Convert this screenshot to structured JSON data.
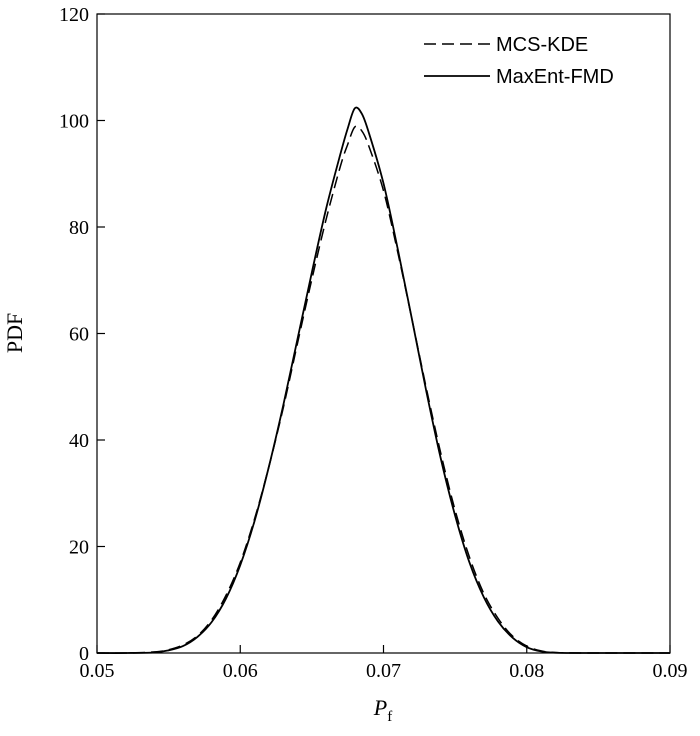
{
  "chart_data": {
    "type": "line",
    "xlabel": "P",
    "xlabel_subscript": "f",
    "ylabel": "PDF",
    "xlim": [
      0.05,
      0.09
    ],
    "ylim": [
      0,
      120
    ],
    "x_ticks": [
      0.05,
      0.06,
      0.07,
      0.08,
      0.09
    ],
    "x_tick_labels": [
      "0.05",
      "0.06",
      "0.07",
      "0.08",
      "0.09"
    ],
    "y_ticks": [
      0,
      20,
      40,
      60,
      80,
      100,
      120
    ],
    "y_tick_labels": [
      "0",
      "20",
      "40",
      "60",
      "80",
      "100",
      "120"
    ],
    "grid": false,
    "legend_position": "top-right",
    "series": [
      {
        "name": "MCS-KDE",
        "style": "dashed",
        "color": "#000000",
        "points": [
          [
            0.05,
            0
          ],
          [
            0.052,
            0
          ],
          [
            0.054,
            0.2
          ],
          [
            0.055,
            0.6
          ],
          [
            0.056,
            1.5
          ],
          [
            0.057,
            3.2
          ],
          [
            0.058,
            6.2
          ],
          [
            0.059,
            10.8
          ],
          [
            0.06,
            17.0
          ],
          [
            0.061,
            25.2
          ],
          [
            0.062,
            35.0
          ],
          [
            0.063,
            46.0
          ],
          [
            0.064,
            58.2
          ],
          [
            0.065,
            70.2
          ],
          [
            0.066,
            81.5
          ],
          [
            0.067,
            91.5
          ],
          [
            0.0675,
            95.5
          ],
          [
            0.068,
            98.8
          ],
          [
            0.0685,
            98.0
          ],
          [
            0.069,
            95.0
          ],
          [
            0.07,
            86.8
          ],
          [
            0.071,
            75.2
          ],
          [
            0.072,
            62.5
          ],
          [
            0.073,
            49.6
          ],
          [
            0.074,
            37.5
          ],
          [
            0.075,
            26.8
          ],
          [
            0.076,
            18.0
          ],
          [
            0.077,
            11.2
          ],
          [
            0.078,
            6.5
          ],
          [
            0.079,
            3.2
          ],
          [
            0.08,
            1.3
          ],
          [
            0.081,
            0.4
          ],
          [
            0.082,
            0.1
          ],
          [
            0.084,
            0
          ],
          [
            0.09,
            0
          ]
        ]
      },
      {
        "name": "MaxEnt-FMD",
        "style": "solid",
        "color": "#000000",
        "points": [
          [
            0.05,
            0
          ],
          [
            0.052,
            0
          ],
          [
            0.054,
            0.1
          ],
          [
            0.055,
            0.5
          ],
          [
            0.056,
            1.3
          ],
          [
            0.057,
            3.0
          ],
          [
            0.058,
            5.8
          ],
          [
            0.059,
            10.2
          ],
          [
            0.06,
            16.5
          ],
          [
            0.061,
            24.8
          ],
          [
            0.062,
            35.0
          ],
          [
            0.063,
            46.5
          ],
          [
            0.064,
            59.0
          ],
          [
            0.065,
            71.5
          ],
          [
            0.066,
            83.5
          ],
          [
            0.067,
            93.8
          ],
          [
            0.0675,
            98.5
          ],
          [
            0.068,
            102.3
          ],
          [
            0.0685,
            101.2
          ],
          [
            0.069,
            97.5
          ],
          [
            0.07,
            88.2
          ],
          [
            0.071,
            75.8
          ],
          [
            0.072,
            62.5
          ],
          [
            0.073,
            49.0
          ],
          [
            0.074,
            36.5
          ],
          [
            0.075,
            25.8
          ],
          [
            0.076,
            17.0
          ],
          [
            0.077,
            10.5
          ],
          [
            0.078,
            5.9
          ],
          [
            0.079,
            2.9
          ],
          [
            0.08,
            1.1
          ],
          [
            0.081,
            0.3
          ],
          [
            0.082,
            0.05
          ],
          [
            0.084,
            0
          ],
          [
            0.09,
            0
          ]
        ]
      }
    ]
  }
}
